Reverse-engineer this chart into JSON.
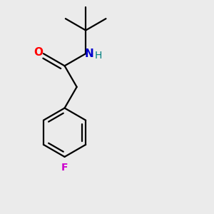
{
  "bg_color": "#ebebeb",
  "line_color": "#000000",
  "O_color": "#ff0000",
  "N_color": "#0000cc",
  "H_color": "#008080",
  "F_color": "#cc00cc",
  "line_width": 1.6,
  "figsize": [
    3.0,
    3.0
  ],
  "dpi": 100,
  "xlim": [
    0,
    1
  ],
  "ylim": [
    0,
    1
  ]
}
